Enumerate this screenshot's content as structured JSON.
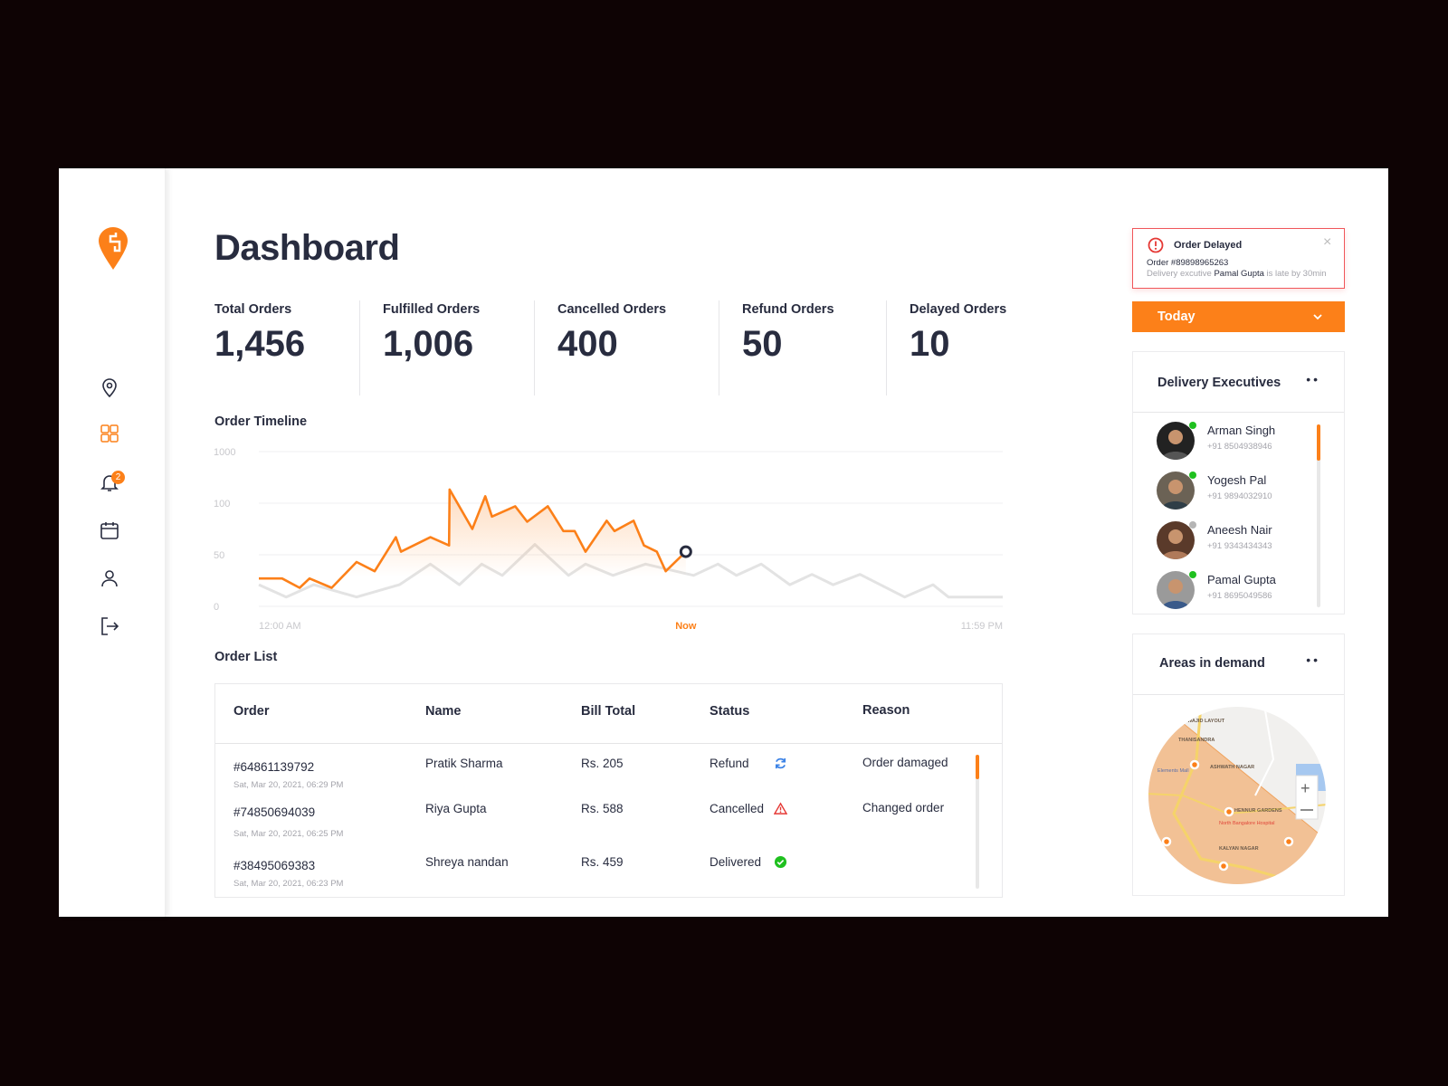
{
  "brand": {
    "accent": "#fc8019",
    "text": "#282c3f",
    "muted": "#a4a4ab",
    "danger": "#e53935",
    "success": "#1fc01f",
    "info": "#3b82e6"
  },
  "sidebar": {
    "items": [
      {
        "icon": "location-pin-icon",
        "active": false
      },
      {
        "icon": "dashboard-grid-icon",
        "active": true
      },
      {
        "icon": "bell-icon",
        "active": false,
        "badge": "2"
      },
      {
        "icon": "calendar-icon",
        "active": false
      },
      {
        "icon": "user-icon",
        "active": false
      },
      {
        "icon": "logout-icon",
        "active": false
      }
    ]
  },
  "header": {
    "title": "Dashboard"
  },
  "stats": [
    {
      "label": "Total Orders",
      "value": "1,456"
    },
    {
      "label": "Fulfilled Orders",
      "value": "1,006"
    },
    {
      "label": "Cancelled Orders",
      "value": "400"
    },
    {
      "label": "Refund Orders",
      "value": "50"
    },
    {
      "label": "Delayed Orders",
      "value": "10"
    }
  ],
  "timeline": {
    "title": "Order Timeline"
  },
  "chart_data": {
    "type": "line",
    "title": "Order Timeline",
    "y_ticks": [
      0,
      50,
      100,
      1000
    ],
    "y_scale": "piecewise, ticks equally spaced",
    "x_tick_labels": [
      "12:00 AM",
      "Now",
      "11:59 PM"
    ],
    "x_range": [
      "00:00",
      "23:59"
    ],
    "now": "13:46",
    "grid": true,
    "series": [
      {
        "style": "orange, filled",
        "color": "#fc8019",
        "points": [
          [
            "00:00",
            27
          ],
          [
            "00:45",
            27
          ],
          [
            "01:19",
            18
          ],
          [
            "01:38",
            27
          ],
          [
            "02:21",
            18
          ],
          [
            "03:09",
            43
          ],
          [
            "03:44",
            34
          ],
          [
            "04:25",
            67
          ],
          [
            "04:35",
            53
          ],
          [
            "05:32",
            67
          ],
          [
            "06:08",
            59
          ],
          [
            "06:09",
            338
          ],
          [
            "06:53",
            75
          ],
          [
            "07:18",
            222
          ],
          [
            "07:31",
            87
          ],
          [
            "08:16",
            97
          ],
          [
            "08:39",
            82
          ],
          [
            "09:19",
            97
          ],
          [
            "09:49",
            73
          ],
          [
            "10:11",
            73
          ],
          [
            "10:32",
            53
          ],
          [
            "11:13",
            83
          ],
          [
            "11:28",
            73
          ],
          [
            "12:05",
            83
          ],
          [
            "12:25",
            59
          ],
          [
            "12:50",
            53
          ],
          [
            "13:07",
            34
          ],
          [
            "13:46",
            53
          ]
        ]
      },
      {
        "style": "gray",
        "color": "#e3e3e3",
        "points": [
          [
            "00:00",
            21
          ],
          [
            "00:53",
            9
          ],
          [
            "01:46",
            21
          ],
          [
            "03:09",
            9
          ],
          [
            "04:32",
            21
          ],
          [
            "05:32",
            41
          ],
          [
            "06:28",
            21
          ],
          [
            "07:11",
            41
          ],
          [
            "07:51",
            30
          ],
          [
            "08:54",
            60
          ],
          [
            "09:59",
            30
          ],
          [
            "10:32",
            41
          ],
          [
            "11:25",
            30
          ],
          [
            "12:28",
            41
          ],
          [
            "14:01",
            30
          ],
          [
            "14:48",
            41
          ],
          [
            "15:24",
            30
          ],
          [
            "16:12",
            41
          ],
          [
            "17:07",
            21
          ],
          [
            "17:50",
            31
          ],
          [
            "18:31",
            21
          ],
          [
            "19:23",
            31
          ],
          [
            "20:49",
            9
          ],
          [
            "21:44",
            21
          ],
          [
            "22:14",
            9
          ],
          [
            "23:59",
            9
          ]
        ]
      }
    ]
  },
  "order_list": {
    "title": "Order List",
    "columns": [
      "Order",
      "Name",
      "Bill Total",
      "Status",
      "Reason"
    ],
    "rows": [
      {
        "order": "#64861139792",
        "date": "Sat, Mar 20, 2021, 06:29 PM",
        "name": "Pratik Sharma",
        "bill": "Rs. 205",
        "status": "Refund",
        "status_icon": "refresh-icon",
        "reason": "Order damaged"
      },
      {
        "order": "#74850694039",
        "date": "Sat, Mar 20, 2021, 06:25 PM",
        "name": "Riya Gupta",
        "bill": "Rs. 588",
        "status": "Cancelled",
        "status_icon": "warning-icon",
        "reason": "Changed order"
      },
      {
        "order": "#38495069383",
        "date": "Sat, Mar 20, 2021, 06:23 PM",
        "name": "Shreya nandan",
        "bill": "Rs. 459",
        "status": "Delivered",
        "status_icon": "check-circle-icon",
        "reason": ""
      }
    ],
    "scroll_fraction": 0.18
  },
  "alert": {
    "title": "Order Delayed",
    "order": "Order #89898965263",
    "msg_pre": "Delivery excutive ",
    "msg_name": "Pamal Gupta",
    "msg_post": " is late by 30min"
  },
  "filter": {
    "selected": "Today"
  },
  "executives": {
    "title": "Delivery Executives",
    "items": [
      {
        "name": "Arman Singh",
        "phone": "+91 8504938946",
        "online": true
      },
      {
        "name": "Yogesh Pal",
        "phone": "+91 9894032910",
        "online": true
      },
      {
        "name": "Aneesh Nair",
        "phone": "+91 9343434343",
        "online": false
      },
      {
        "name": "Pamal Gupta",
        "phone": "+91 8695049586",
        "online": true
      }
    ],
    "scroll_fraction": 0.2
  },
  "areas": {
    "title": "Areas in demand",
    "map_labels": [
      "WAJID LAYOUT",
      "THANISANDRA",
      "ASHWATH NAGAR",
      "HENNUR GARDENS",
      "KALYAN NAGAR",
      "North Bangalore Hospital",
      "Elements Mall"
    ]
  }
}
